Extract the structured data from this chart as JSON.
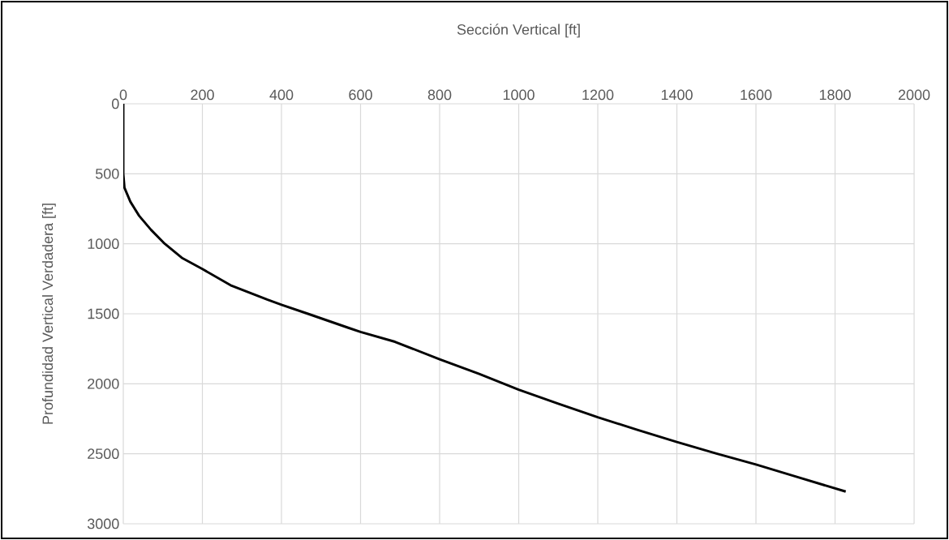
{
  "chart_data": {
    "type": "line",
    "xlabel": "Sección Vertical [ft]",
    "ylabel": "Profundidad Vertical Verdadera [ft]",
    "xlim": [
      0,
      2000
    ],
    "xticks": [
      0,
      200,
      400,
      600,
      800,
      1000,
      1200,
      1400,
      1600,
      1800,
      2000
    ],
    "ylim": [
      3000,
      0
    ],
    "yticks": [
      0,
      500,
      1000,
      1500,
      2000,
      2500,
      3000
    ],
    "grid": true,
    "marker": "none",
    "line_style": "solid",
    "series": [
      {
        "color": "#000000",
        "x": [
          0,
          0,
          3,
          18,
          40,
          70,
          105,
          148,
          200,
          274,
          365,
          400,
          467,
          569,
          600,
          687,
          800,
          900,
          1000,
          1100,
          1200,
          1300,
          1400,
          1500,
          1600,
          1700,
          1827
        ],
        "values": [
          0,
          500,
          600,
          700,
          800,
          900,
          1000,
          1100,
          1180,
          1300,
          1400,
          1435,
          1500,
          1600,
          1630,
          1700,
          1825,
          1930,
          2042,
          2142,
          2239,
          2329,
          2416,
          2498,
          2577,
          2662,
          2770
        ]
      }
    ]
  }
}
